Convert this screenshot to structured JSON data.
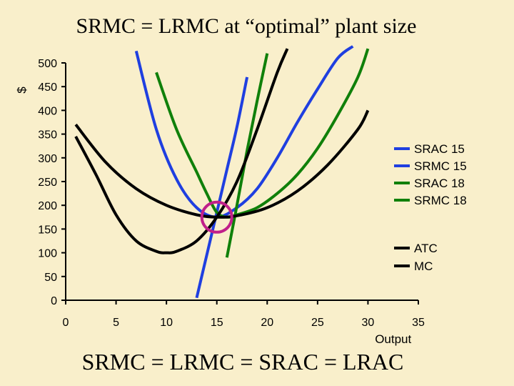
{
  "title": "SRMC = LRMC at “optimal” plant size",
  "footer": "SRMC = LRMC  = SRAC = LRAC",
  "chart_data": {
    "type": "line",
    "xlabel": "Output",
    "ylabel": "$",
    "xlim": [
      0,
      35
    ],
    "ylim": [
      0,
      500
    ],
    "xticks": [
      0,
      5,
      10,
      15,
      20,
      25,
      30,
      35
    ],
    "yticks": [
      0,
      50,
      100,
      150,
      200,
      250,
      300,
      350,
      400,
      450,
      500
    ],
    "series": [
      {
        "name": "SRAC 15",
        "color": "#1f3fe0",
        "x": [
          7,
          9,
          11,
          13,
          15,
          17,
          19,
          21,
          23,
          25,
          27,
          28.5
        ],
        "y": [
          525,
          360,
          255,
          195,
          175,
          195,
          235,
          300,
          375,
          445,
          510,
          535
        ]
      },
      {
        "name": "SRMC 15",
        "color": "#1f3fe0",
        "x": [
          13,
          14,
          15,
          16,
          17,
          18
        ],
        "y": [
          5,
          95,
          185,
          275,
          365,
          470
        ]
      },
      {
        "name": "SRAC 18",
        "color": "#10800a",
        "x": [
          9,
          11,
          13,
          14,
          15,
          16,
          17,
          19,
          21,
          23,
          25,
          27,
          29,
          30
        ],
        "y": [
          480,
          360,
          270,
          225,
          185,
          175,
          180,
          195,
          225,
          265,
          320,
          390,
          470,
          530
        ]
      },
      {
        "name": "SRMC 18",
        "color": "#10800a",
        "x": [
          16,
          17,
          18,
          19,
          20
        ],
        "y": [
          90,
          200,
          315,
          420,
          520
        ]
      },
      {
        "name": "ATC",
        "color": "#000000",
        "x": [
          1,
          4,
          7,
          10,
          13,
          15,
          17,
          20,
          23,
          26,
          29,
          30
        ],
        "y": [
          370,
          290,
          235,
          200,
          180,
          175,
          178,
          195,
          230,
          285,
          360,
          400
        ]
      },
      {
        "name": "MC",
        "color": "#000000",
        "x": [
          1,
          3,
          5,
          7,
          9,
          10,
          11,
          13,
          15,
          17,
          19,
          21,
          22
        ],
        "y": [
          345,
          265,
          180,
          125,
          103,
          100,
          103,
          125,
          175,
          250,
          360,
          480,
          530
        ]
      }
    ],
    "annotation": {
      "type": "circle",
      "color": "#c0208a",
      "x": 15,
      "y": 175
    }
  }
}
